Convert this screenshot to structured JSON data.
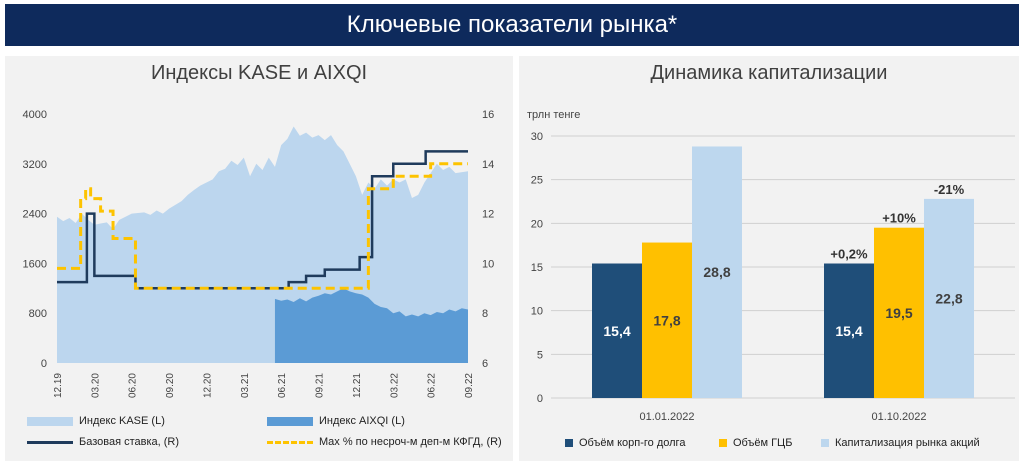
{
  "page_title": "Ключевые показатели рынка*",
  "colors": {
    "banner": "#0e2a5c",
    "kase_area": "#bcd6ee",
    "aixqi_area": "#5b9bd5",
    "base_rate": "#1f3b5c",
    "max_rate": "#fdc300",
    "corp_debt": "#1f4e79",
    "gcb": "#ffc000",
    "capitalization": "#bdd7ee"
  },
  "chart_data": [
    {
      "type": "area",
      "title": "Индексы KASE и AIXQI",
      "left_axis": {
        "ylim": [
          0,
          4000
        ],
        "ticks": [
          "4000",
          "3200",
          "2400",
          "1600",
          "800",
          "0"
        ]
      },
      "right_axis": {
        "ylim": [
          6,
          16
        ],
        "ticks": [
          "16",
          "14",
          "12",
          "10",
          "8",
          "6"
        ]
      },
      "x_ticks": [
        "12.19",
        "03.20",
        "06.20",
        "09.20",
        "12.20",
        "03.21",
        "06.21",
        "09.21",
        "12.21",
        "03.22",
        "06.22",
        "09.22"
      ],
      "x_range": [
        0,
        33
      ],
      "series": [
        {
          "name": "Индекс KASE (L)",
          "axis": "left",
          "kind": "area",
          "points": [
            [
              0,
              2350
            ],
            [
              0.5,
              2280
            ],
            [
              1,
              2330
            ],
            [
              1.5,
              2250
            ],
            [
              2,
              2400
            ],
            [
              2.5,
              2300
            ],
            [
              3,
              2220
            ],
            [
              3.5,
              2240
            ],
            [
              4,
              2260
            ],
            [
              4.5,
              2150
            ],
            [
              5,
              2300
            ],
            [
              6,
              2400
            ],
            [
              7,
              2420
            ],
            [
              7.5,
              2380
            ],
            [
              8,
              2450
            ],
            [
              8.5,
              2400
            ],
            [
              9,
              2480
            ],
            [
              10,
              2600
            ],
            [
              10.5,
              2700
            ],
            [
              11,
              2780
            ],
            [
              11.5,
              2850
            ],
            [
              12,
              2900
            ],
            [
              12.5,
              2950
            ],
            [
              13,
              3080
            ],
            [
              13.5,
              3120
            ],
            [
              14,
              3250
            ],
            [
              14.5,
              3180
            ],
            [
              15,
              3300
            ],
            [
              15.5,
              3000
            ],
            [
              16,
              3200
            ],
            [
              16.5,
              3100
            ],
            [
              17,
              3300
            ],
            [
              17.5,
              3150
            ],
            [
              18,
              3500
            ],
            [
              18.5,
              3600
            ],
            [
              19,
              3800
            ],
            [
              19.5,
              3650
            ],
            [
              20,
              3700
            ],
            [
              20.5,
              3620
            ],
            [
              21,
              3660
            ],
            [
              21.5,
              3580
            ],
            [
              22,
              3660
            ],
            [
              22.5,
              3500
            ],
            [
              23,
              3400
            ],
            [
              23.5,
              3200
            ],
            [
              24,
              3000
            ],
            [
              24.5,
              2700
            ],
            [
              25,
              2900
            ],
            [
              25.5,
              2800
            ],
            [
              26,
              2950
            ],
            [
              26.5,
              2850
            ],
            [
              27,
              2950
            ],
            [
              27.5,
              2900
            ],
            [
              28,
              2950
            ],
            [
              28.5,
              2650
            ],
            [
              29,
              2700
            ],
            [
              29.5,
              2900
            ],
            [
              30,
              3050
            ],
            [
              30.5,
              3200
            ],
            [
              31,
              3100
            ],
            [
              31.5,
              3150
            ],
            [
              32,
              3050
            ],
            [
              33,
              3080
            ]
          ]
        },
        {
          "name": "Индекс AIXQI (L)",
          "axis": "left",
          "kind": "area",
          "points": [
            [
              17.5,
              1030
            ],
            [
              18,
              1000
            ],
            [
              18.5,
              1020
            ],
            [
              19,
              980
            ],
            [
              19.5,
              1040
            ],
            [
              20,
              990
            ],
            [
              20.5,
              1050
            ],
            [
              21,
              1080
            ],
            [
              21.5,
              1120
            ],
            [
              22,
              1100
            ],
            [
              22.5,
              1150
            ],
            [
              23,
              1200
            ],
            [
              23.5,
              1150
            ],
            [
              24,
              1120
            ],
            [
              24.5,
              1100
            ],
            [
              25,
              1050
            ],
            [
              25.5,
              950
            ],
            [
              26,
              900
            ],
            [
              26.5,
              880
            ],
            [
              27,
              800
            ],
            [
              27.5,
              830
            ],
            [
              28,
              750
            ],
            [
              28.5,
              780
            ],
            [
              29,
              750
            ],
            [
              29.5,
              800
            ],
            [
              30,
              770
            ],
            [
              30.5,
              820
            ],
            [
              31,
              800
            ],
            [
              31.5,
              860
            ],
            [
              32,
              830
            ],
            [
              32.5,
              880
            ],
            [
              33,
              860
            ]
          ]
        },
        {
          "name": "Базовая ставка, (R)",
          "axis": "right",
          "kind": "step",
          "points": [
            [
              0,
              9.25
            ],
            [
              2.4,
              9.25
            ],
            [
              2.4,
              12
            ],
            [
              3,
              12
            ],
            [
              3,
              9.5
            ],
            [
              6.3,
              9.5
            ],
            [
              6.3,
              9
            ],
            [
              18.6,
              9
            ],
            [
              18.6,
              9.25
            ],
            [
              20,
              9.25
            ],
            [
              20,
              9.5
            ],
            [
              21.5,
              9.5
            ],
            [
              21.5,
              9.75
            ],
            [
              24.3,
              9.75
            ],
            [
              24.3,
              10.25
            ],
            [
              25.3,
              10.25
            ],
            [
              25.3,
              13.5
            ],
            [
              27,
              13.5
            ],
            [
              27,
              14
            ],
            [
              29.6,
              14
            ],
            [
              29.6,
              14.5
            ],
            [
              33,
              14.5
            ]
          ]
        },
        {
          "name": "Max % по несроч-м деп-м КФГД, (R)",
          "axis": "right",
          "kind": "step-dashed",
          "points": [
            [
              0,
              9.8
            ],
            [
              1.9,
              9.8
            ],
            [
              1.9,
              12.6
            ],
            [
              2.3,
              12.6
            ],
            [
              2.3,
              13
            ],
            [
              2.7,
              13
            ],
            [
              2.7,
              12.6
            ],
            [
              3.5,
              12.6
            ],
            [
              3.5,
              12.1
            ],
            [
              4.5,
              12.1
            ],
            [
              4.5,
              11
            ],
            [
              6.3,
              11
            ],
            [
              6.3,
              9
            ],
            [
              25,
              9
            ],
            [
              25,
              13
            ],
            [
              27,
              13
            ],
            [
              27,
              13.5
            ],
            [
              30,
              13.5
            ],
            [
              30,
              14
            ],
            [
              33,
              14
            ]
          ]
        }
      ],
      "legend": [
        {
          "label": "Индекс KASE (L)",
          "style": "area-light"
        },
        {
          "label": "Индекс AIXQI (L)",
          "style": "area-dark"
        },
        {
          "label": "Базовая ставка, (R)",
          "style": "line-solid"
        },
        {
          "label": "Max % по несроч-м деп-м КФГД, (R)",
          "style": "line-dashed"
        }
      ]
    },
    {
      "type": "bar",
      "title": "Динамика капитализации",
      "ylabel": "трлн тенге",
      "ylim": [
        0,
        30
      ],
      "y_ticks": [
        "30",
        "25",
        "20",
        "15",
        "10",
        "5",
        "0"
      ],
      "categories": [
        "01.01.2022",
        "01.10.2022"
      ],
      "series": [
        {
          "name": "Объём корп-го долга",
          "values": [
            15.4,
            15.4
          ],
          "value_labels": [
            "15,4",
            "15,4"
          ]
        },
        {
          "name": "Объём ГЦБ",
          "values": [
            17.8,
            19.5
          ],
          "value_labels": [
            "17,8",
            "19,5"
          ]
        },
        {
          "name": "Капитализация рынка акций",
          "values": [
            28.8,
            22.8
          ],
          "value_labels": [
            "28,8",
            "22,8"
          ]
        }
      ],
      "change_labels": [
        {
          "category": "01.10.2022",
          "series": "Объём корп-го долга",
          "text": "+0,2%"
        },
        {
          "category": "01.10.2022",
          "series": "Объём ГЦБ",
          "text": "+10%"
        },
        {
          "category": "01.10.2022",
          "series": "Капитализация рынка акций",
          "text": "-21%"
        }
      ]
    }
  ]
}
